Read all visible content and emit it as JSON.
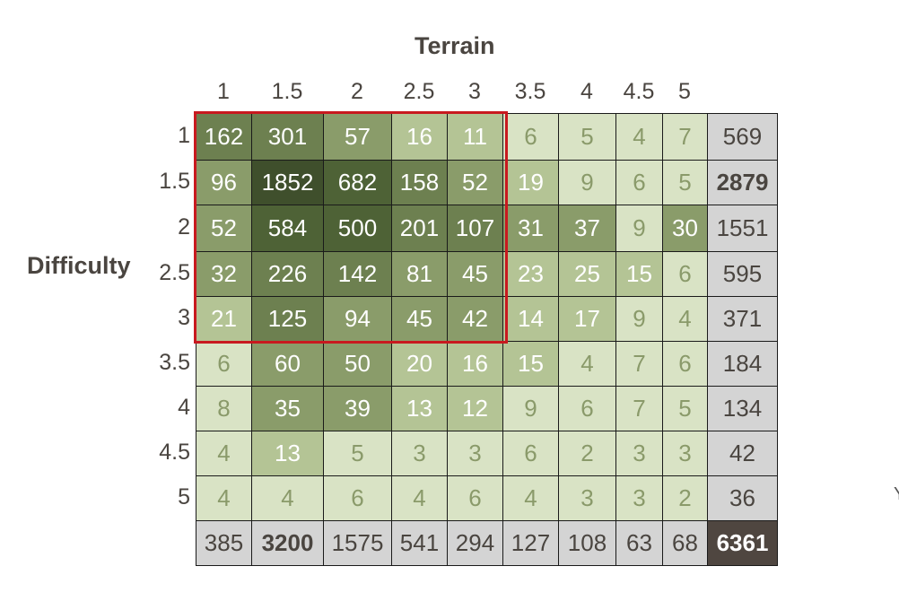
{
  "chart_data": {
    "type": "heatmap",
    "xlabel": "Terrain",
    "ylabel": "Difficulty",
    "x_categories": [
      "1",
      "1.5",
      "2",
      "2.5",
      "3",
      "3.5",
      "4",
      "4.5",
      "5"
    ],
    "y_categories": [
      "1",
      "1.5",
      "2",
      "2.5",
      "3",
      "3.5",
      "4",
      "4.5",
      "5"
    ],
    "values": [
      [
        162,
        301,
        57,
        16,
        11,
        6,
        5,
        4,
        7
      ],
      [
        96,
        1852,
        682,
        158,
        52,
        19,
        9,
        6,
        5
      ],
      [
        52,
        584,
        500,
        201,
        107,
        31,
        37,
        9,
        30
      ],
      [
        32,
        226,
        142,
        81,
        45,
        23,
        25,
        15,
        6
      ],
      [
        21,
        125,
        94,
        45,
        42,
        14,
        17,
        9,
        4
      ],
      [
        6,
        60,
        50,
        20,
        16,
        15,
        4,
        7,
        6
      ],
      [
        8,
        35,
        39,
        13,
        12,
        9,
        6,
        7,
        5
      ],
      [
        4,
        13,
        5,
        3,
        3,
        6,
        2,
        3,
        3
      ],
      [
        4,
        4,
        6,
        4,
        6,
        4,
        3,
        3,
        2
      ]
    ],
    "row_totals": [
      "569",
      "2879",
      "1551",
      "595",
      "371",
      "184",
      "134",
      "42",
      "36"
    ],
    "col_totals": [
      "385",
      "3200",
      "1575",
      "541",
      "294",
      "127",
      "108",
      "63",
      "68"
    ],
    "grand_total": "6361",
    "bold_row_total_index": 1,
    "bold_col_total_index": 1,
    "highlight_region": {
      "x_range": [
        "1",
        "3"
      ],
      "y_range": [
        "1",
        "3"
      ]
    },
    "colors": {
      "highlight_border": "#c8191f",
      "total_cell": "#d4d4d4",
      "grand_total_cell": "#4f4640",
      "text_dark": "#4a4540",
      "text_light": "#ffffff",
      "text_muted": "#8a9a6a"
    }
  },
  "edge_glyph": "Y"
}
